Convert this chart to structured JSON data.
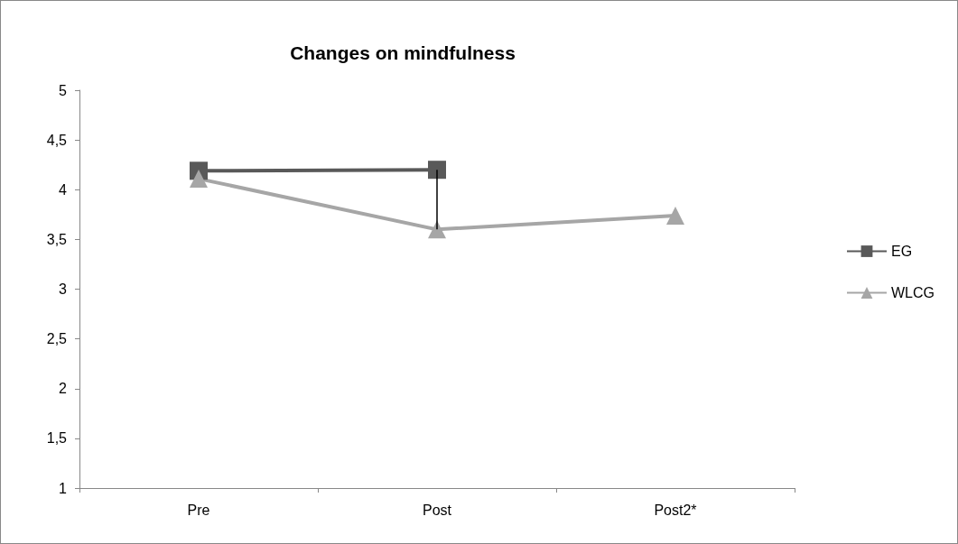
{
  "chart_data": {
    "type": "line",
    "title": "Changes on mindfulness",
    "categories": [
      "Pre",
      "Post",
      "Post2*"
    ],
    "series": [
      {
        "name": "EG",
        "color": "#595959",
        "marker": "square",
        "values": [
          4.19,
          4.2,
          null
        ],
        "errors": [
          null,
          [
            3.6,
            4.2
          ],
          null
        ]
      },
      {
        "name": "WLCG",
        "color": "#a6a6a6",
        "marker": "triangle",
        "values": [
          4.11,
          3.6,
          3.74
        ]
      }
    ],
    "ylim": [
      1,
      5
    ],
    "yticks": [
      1,
      {
        "value": 1.5,
        "label": "1,5"
      },
      2,
      {
        "value": 2.5,
        "label": "2,5"
      },
      3,
      {
        "value": 3.5,
        "label": "3,5"
      },
      4,
      {
        "value": 4.5,
        "label": "4,5"
      },
      5
    ],
    "grid": false,
    "legend": "right"
  }
}
